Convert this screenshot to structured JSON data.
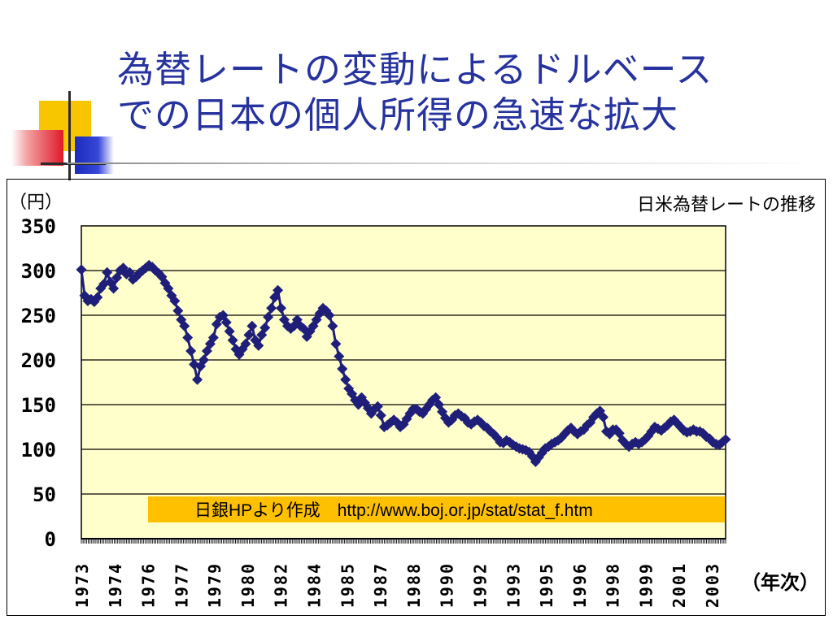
{
  "slide": {
    "title_line1": "為替レートの変動によるドルベース",
    "title_line2": "での日本の個人所得の急速な拡大"
  },
  "chart_data": {
    "type": "line",
    "title": "日米為替レートの推移",
    "ylabel": "（円）",
    "xlabel": "（年次）",
    "ylim": [
      0,
      350
    ],
    "yticks": [
      "0",
      "50",
      "100",
      "150",
      "200",
      "250",
      "300",
      "350"
    ],
    "xticks": [
      "1973",
      "1974",
      "1976",
      "1977",
      "1979",
      "1980",
      "1982",
      "1984",
      "1985",
      "1987",
      "1988",
      "1990",
      "1992",
      "1993",
      "1995",
      "1996",
      "1998",
      "1999",
      "2001",
      "2003"
    ],
    "grid": true,
    "annotation": "日銀HPより作成　http://www.boj.or.jp/stat/stat_f.htm",
    "colors": {
      "plot_bg": "#ffffcc",
      "line": "#1f1f7a",
      "annotation_bg": "#ffc000",
      "axis": "#000000"
    },
    "series": [
      {
        "values": [
          301,
          272,
          266,
          268,
          265,
          270,
          280,
          285,
          298,
          287,
          280,
          292,
          300,
          303,
          296,
          298,
          290,
          293,
          297,
          300,
          303,
          306,
          304,
          300,
          297,
          293,
          286,
          280,
          272,
          266,
          255,
          245,
          238,
          225,
          210,
          195,
          178,
          193,
          200,
          210,
          218,
          225,
          240,
          248,
          250,
          242,
          232,
          222,
          212,
          206,
          212,
          218,
          228,
          238,
          222,
          216,
          228,
          236,
          248,
          258,
          270,
          278,
          258,
          245,
          238,
          235,
          238,
          245,
          238,
          235,
          226,
          232,
          238,
          245,
          252,
          258,
          255,
          250,
          238,
          218,
          204,
          190,
          178,
          168,
          162,
          155,
          150,
          158,
          152,
          146,
          140,
          145,
          148,
          138,
          125,
          127,
          130,
          133,
          130,
          125,
          128,
          134,
          140,
          145,
          145,
          142,
          140,
          145,
          150,
          155,
          158,
          150,
          142,
          135,
          130,
          133,
          138,
          140,
          137,
          135,
          130,
          128,
          131,
          133,
          130,
          126,
          124,
          120,
          117,
          113,
          108,
          107,
          110,
          108,
          105,
          103,
          101,
          100,
          99,
          97,
          92,
          86,
          91,
          96,
          101,
          103,
          106,
          108,
          110,
          113,
          117,
          121,
          124,
          120,
          117,
          120,
          122,
          127,
          130,
          136,
          140,
          143,
          136,
          120,
          117,
          122,
          122,
          118,
          110,
          106,
          103,
          106,
          108,
          106,
          108,
          111,
          115,
          120,
          125,
          123,
          121,
          124,
          127,
          131,
          133,
          129,
          125,
          121,
          119,
          120,
          122,
          120,
          120,
          118,
          114,
          112,
          108,
          106,
          105,
          108,
          111
        ]
      }
    ]
  }
}
